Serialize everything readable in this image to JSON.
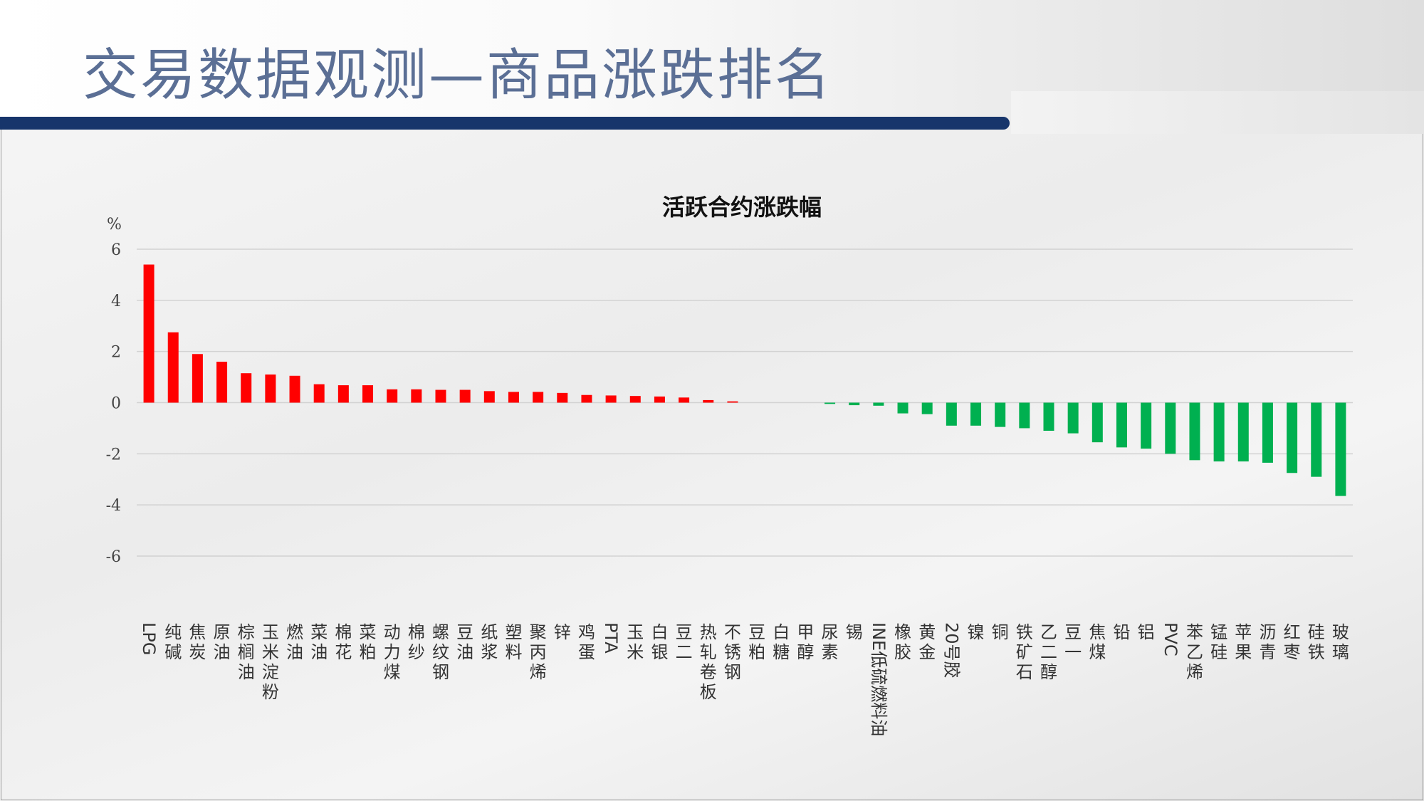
{
  "page": {
    "title": "交易数据观测—商品涨跌排名"
  },
  "colors": {
    "up": "#ff0000",
    "down": "#00b050",
    "title_bar": "#17356b"
  },
  "chart_data": {
    "type": "bar",
    "title": "活跃合约涨跌幅",
    "ylabel": "%",
    "xlabel": "",
    "ylim": [
      -6,
      6
    ],
    "yticks": [
      6,
      4,
      2,
      0,
      -2,
      -4,
      -6
    ],
    "grid": true,
    "categories": [
      "LPG",
      "纯碱",
      "焦炭",
      "原油",
      "棕榈油",
      "玉米淀粉",
      "燃油",
      "菜油",
      "棉花",
      "菜粕",
      "动力煤",
      "棉纱",
      "螺纹钢",
      "豆油",
      "纸浆",
      "塑料",
      "聚丙烯",
      "锌",
      "鸡蛋",
      "PTA",
      "玉米",
      "白银",
      "豆二",
      "热轧卷板",
      "不锈钢",
      "豆粕",
      "白糖",
      "甲醇",
      "尿素",
      "锡",
      "INE低硫燃料油",
      "橡胶",
      "黄金",
      "20号胶",
      "镍",
      "铜",
      "铁矿石",
      "乙二醇",
      "豆一",
      "焦煤",
      "铅",
      "铝",
      "PVC",
      "苯乙烯",
      "锰硅",
      "苹果",
      "沥青",
      "红枣",
      "硅铁",
      "玻璃"
    ],
    "values": [
      5.4,
      2.75,
      1.9,
      1.6,
      1.15,
      1.1,
      1.05,
      0.72,
      0.68,
      0.68,
      0.52,
      0.52,
      0.5,
      0.5,
      0.45,
      0.42,
      0.42,
      0.38,
      0.3,
      0.28,
      0.26,
      0.24,
      0.2,
      0.1,
      0.05,
      0.0,
      0.0,
      0.0,
      -0.05,
      -0.1,
      -0.12,
      -0.42,
      -0.45,
      -0.9,
      -0.9,
      -0.95,
      -1.0,
      -1.1,
      -1.2,
      -1.55,
      -1.75,
      -1.8,
      -2.0,
      -2.25,
      -2.3,
      -2.3,
      -2.35,
      -2.75,
      -2.9,
      -3.65
    ]
  }
}
